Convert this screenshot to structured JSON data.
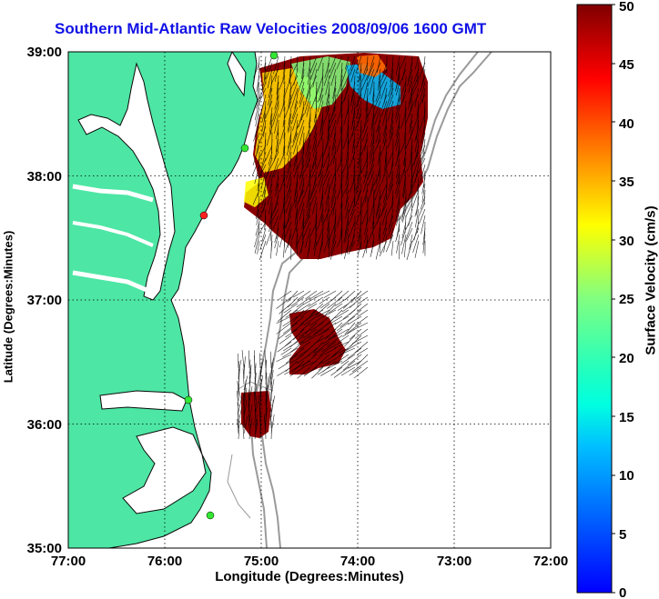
{
  "title": "Southern Mid-Atlantic Raw Velocities 2008/09/06 1600 GMT",
  "x_axis": {
    "label": "Longitude (Degrees:Minutes)",
    "ticks": [
      "77:00",
      "76:00",
      "75:00",
      "74:00",
      "73:00",
      "72:00"
    ],
    "range": [
      "77:00",
      "72:00"
    ]
  },
  "y_axis": {
    "label": "Latitude (Degrees:Minutes)",
    "ticks": [
      "35:00",
      "36:00",
      "37:00",
      "38:00",
      "39:00"
    ],
    "range": [
      "35:00",
      "39:00"
    ]
  },
  "colorbar": {
    "label": "Surface Velocity (cm/s)",
    "ticks": [
      "0",
      "5",
      "10",
      "15",
      "20",
      "25",
      "30",
      "35",
      "40",
      "45",
      "50"
    ],
    "min": 0,
    "max": 50,
    "colormap": "jet"
  },
  "colors": {
    "land": "#4de6a4",
    "title": "#1010e6",
    "high_velocity": "#8b0000",
    "bathymetry": "#9a9a9a",
    "grid": "#000000"
  }
}
